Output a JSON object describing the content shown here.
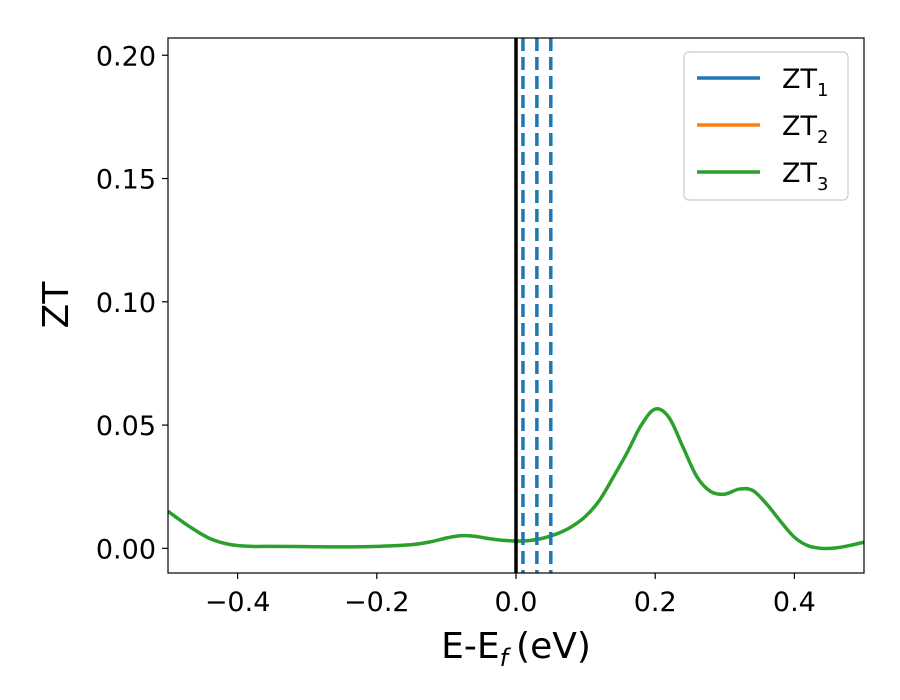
{
  "chart_data": {
    "type": "line",
    "xlabel": "E-E",
    "xlabel_sub": "f",
    "xlabel_units": "(eV)",
    "ylabel": "ZT",
    "xlim": [
      -0.5,
      0.5
    ],
    "ylim": [
      -0.01,
      0.207
    ],
    "x_ticks": [
      -0.4,
      -0.2,
      0.0,
      0.2,
      0.4
    ],
    "x_tick_labels": [
      "−0.4",
      "−0.2",
      "0.0",
      "0.2",
      "0.4"
    ],
    "y_ticks": [
      0.0,
      0.05,
      0.1,
      0.15,
      0.2
    ],
    "y_tick_labels": [
      "0.00",
      "0.05",
      "0.10",
      "0.15",
      "0.20"
    ],
    "grid": false,
    "legend_position": "top-right",
    "series": [
      {
        "name": "ZT",
        "name_sub": "1",
        "color": "#1f77b4",
        "x": [],
        "y": []
      },
      {
        "name": "ZT",
        "name_sub": "2",
        "color": "#ff7f0e",
        "x": [],
        "y": []
      },
      {
        "name": "ZT",
        "name_sub": "3",
        "color": "#2ca02c",
        "x": [
          -0.5,
          -0.47,
          -0.44,
          -0.41,
          -0.38,
          -0.35,
          -0.3,
          -0.25,
          -0.2,
          -0.15,
          -0.12,
          -0.1,
          -0.08,
          -0.06,
          -0.04,
          -0.02,
          0.0,
          0.02,
          0.04,
          0.06,
          0.08,
          0.1,
          0.12,
          0.14,
          0.16,
          0.18,
          0.2,
          0.22,
          0.24,
          0.26,
          0.28,
          0.3,
          0.32,
          0.34,
          0.36,
          0.38,
          0.4,
          0.42,
          0.44,
          0.46,
          0.48,
          0.5
        ],
        "y": [
          0.015,
          0.009,
          0.004,
          0.0015,
          0.0008,
          0.0008,
          0.0007,
          0.0006,
          0.0008,
          0.0015,
          0.0028,
          0.0042,
          0.0051,
          0.0049,
          0.004,
          0.0033,
          0.003,
          0.0032,
          0.0042,
          0.006,
          0.0088,
          0.013,
          0.0195,
          0.029,
          0.039,
          0.05,
          0.0565,
          0.053,
          0.041,
          0.029,
          0.023,
          0.022,
          0.024,
          0.0235,
          0.018,
          0.011,
          0.0045,
          0.001,
          0.0,
          0.0002,
          0.0012,
          0.0025
        ]
      }
    ],
    "vertical_lines": [
      {
        "x": 0.0,
        "style": "solid",
        "color": "#000000"
      },
      {
        "x": 0.01,
        "style": "dashed",
        "color": "#1f77b4"
      },
      {
        "x": 0.03,
        "style": "dashed",
        "color": "#1f77b4"
      },
      {
        "x": 0.05,
        "style": "dashed",
        "color": "#1f77b4"
      }
    ]
  }
}
